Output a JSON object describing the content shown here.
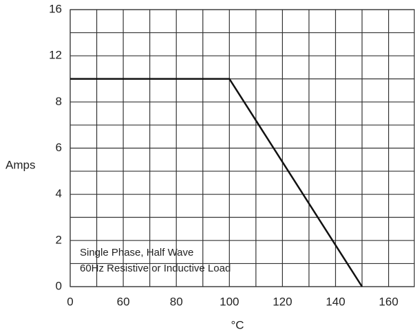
{
  "chart_data": {
    "type": "line",
    "x": [
      0,
      100,
      150
    ],
    "series": [
      {
        "name": null,
        "color": "#111111",
        "values": [
          10,
          10,
          0
        ]
      }
    ],
    "xlim": [
      0,
      170
    ],
    "xticks": [
      0,
      60,
      80,
      100,
      120,
      140,
      160
    ],
    "ylim": [
      0,
      16
    ],
    "yticks": [
      0,
      2,
      4,
      6,
      8,
      12,
      16
    ],
    "xlabel": "°C",
    "ylabel": "Amps",
    "annotations": [
      "Single Phase, Half Wave",
      "60Hz Resistive or Inductive Load"
    ],
    "grid": true
  }
}
